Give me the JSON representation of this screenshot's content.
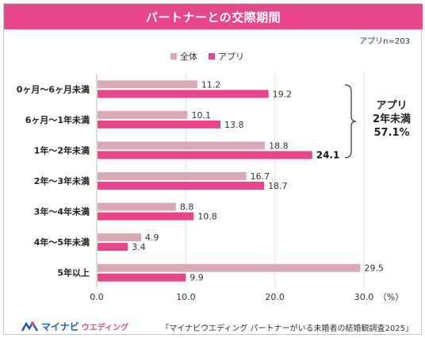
{
  "title": "パートナーとの交際期間",
  "sample_note": "アプリn=203",
  "legend": [
    {
      "label": "全体",
      "color": "#d9aab6"
    },
    {
      "label": "アプリ",
      "color": "#e8458b"
    }
  ],
  "callout": {
    "line1": "アプリ",
    "line2": "2年未満",
    "line3": "57.1%"
  },
  "unit_label": "（%）",
  "source": "「マイナビウエディング パートナーがいる未婚者の結婚観調査2025」",
  "logo": {
    "main": "マイナビ",
    "sub": "ウエディング"
  },
  "chart_data": {
    "type": "bar",
    "orientation": "horizontal",
    "categories": [
      "0ヶ月～6ヶ月未満",
      "6ヶ月～1年未満",
      "1年～2年未満",
      "2年～3年未満",
      "3年～4年未満",
      "4年～5年未満",
      "5年以上"
    ],
    "series": [
      {
        "name": "全体",
        "values": [
          11.2,
          10.1,
          18.8,
          16.7,
          8.8,
          4.9,
          29.5
        ],
        "labels": [
          "11.2",
          "10.1",
          "18.8",
          "16.7",
          "8.8",
          "4.9",
          "29.5"
        ]
      },
      {
        "name": "アプリ",
        "values": [
          19.2,
          13.8,
          24.1,
          18.7,
          10.8,
          3.4,
          9.9
        ],
        "labels": [
          "19.2",
          "13.8",
          "24.1",
          "18.7",
          "10.8",
          "3.4",
          "9.9"
        ]
      }
    ],
    "xlim": [
      0,
      30
    ],
    "ticks": [
      0,
      10,
      20,
      30
    ],
    "tick_labels": [
      "0.0",
      "10.0",
      "20.0",
      "30.0"
    ],
    "grid": true,
    "legend_position": "top-center",
    "highlight": {
      "series": 1,
      "category": 2
    }
  }
}
